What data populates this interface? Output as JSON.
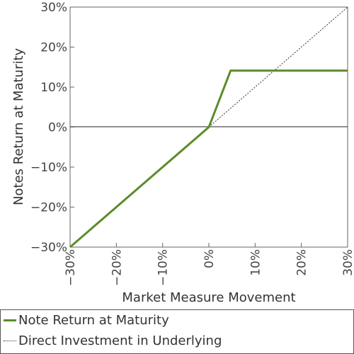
{
  "chart_data": {
    "type": "line",
    "xlabel": "Market Measure Movement",
    "ylabel": "Notes Return at Maturity",
    "xlim": [
      -30,
      30
    ],
    "ylim": [
      -30,
      30
    ],
    "x_ticks": [
      "−30%",
      "−20%",
      "−10%",
      "0%",
      "10%",
      "20%",
      "30%"
    ],
    "y_ticks": [
      "30%",
      "20%",
      "10%",
      "0%",
      "−10%",
      "−20%",
      "−30%"
    ],
    "x_tick_values": [
      -30,
      -20,
      -10,
      0,
      10,
      20,
      30
    ],
    "y_tick_values": [
      30,
      20,
      10,
      0,
      -10,
      -20,
      -30
    ],
    "grid": false,
    "legend_position": "bottom",
    "series": [
      {
        "name": "Note Return at Maturity",
        "color": "#5b8c2a",
        "style": "solid",
        "x": [
          -30,
          0,
          4.7,
          30
        ],
        "y": [
          -30,
          0,
          14.1,
          14.1
        ]
      },
      {
        "name": "Direct Investment in Underlying",
        "color": "#333333",
        "style": "dotted",
        "x": [
          0,
          30
        ],
        "y": [
          0,
          30
        ]
      }
    ]
  }
}
